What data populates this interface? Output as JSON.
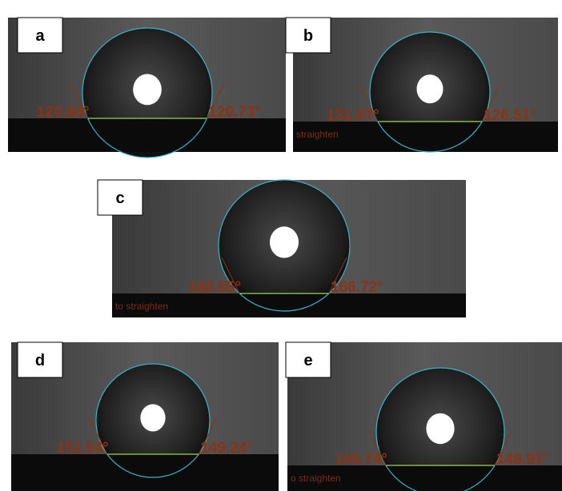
{
  "panels": [
    {
      "label": "a",
      "left_angle": "120.84°",
      "right_angle": "120.73°"
    },
    {
      "label": "b",
      "left_angle": "131.87°",
      "right_angle": "126.51°",
      "overlay": "straighten"
    },
    {
      "label": "c",
      "left_angle": "168.65°",
      "right_angle": "166.72°",
      "overlay": "to straighten"
    },
    {
      "label": "d",
      "left_angle": "151.54°",
      "right_angle": "149.24°"
    },
    {
      "label": "e",
      "left_angle": "145.74°",
      "right_angle": "148.91°",
      "overlay": "o straighten"
    }
  ]
}
